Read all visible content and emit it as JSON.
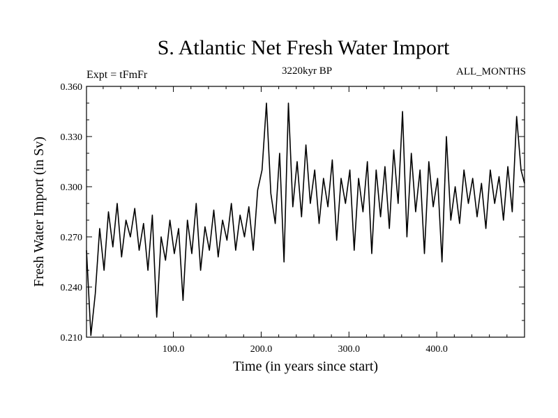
{
  "chart_data": {
    "type": "line",
    "title": "S. Atlantic Net Fresh Water Import",
    "subtitle": "3220kyr BP",
    "experiment_label": "Expt = tFmFr",
    "months_label": "ALL_MONTHS",
    "xlabel": "Time (in years since start)",
    "ylabel": "Fresh Water Import (in Sv)",
    "xlim": [
      1,
      500
    ],
    "ylim": [
      0.21,
      0.36
    ],
    "x_ticks": [
      100,
      200,
      300,
      400
    ],
    "x_tick_labels": [
      "100.0",
      "200.0",
      "300.0",
      "400.0"
    ],
    "y_ticks": [
      0.21,
      0.24,
      0.27,
      0.3,
      0.33,
      0.36
    ],
    "y_tick_labels": [
      "0.210",
      "0.240",
      "0.270",
      "0.300",
      "0.330",
      "0.360"
    ],
    "grid": false,
    "series": [
      {
        "name": "fresh water import",
        "x": [
          1,
          6,
          11,
          16,
          21,
          26,
          31,
          36,
          41,
          46,
          51,
          56,
          61,
          66,
          71,
          76,
          81,
          86,
          91,
          96,
          101,
          106,
          111,
          116,
          121,
          126,
          131,
          136,
          141,
          146,
          151,
          156,
          161,
          166,
          171,
          176,
          181,
          186,
          191,
          196,
          201,
          206,
          211,
          216,
          221,
          226,
          231,
          236,
          241,
          246,
          251,
          256,
          261,
          266,
          271,
          276,
          281,
          286,
          291,
          296,
          301,
          306,
          311,
          316,
          321,
          326,
          331,
          336,
          341,
          346,
          351,
          356,
          361,
          366,
          371,
          376,
          381,
          386,
          391,
          396,
          401,
          406,
          411,
          416,
          421,
          426,
          431,
          436,
          441,
          446,
          451,
          456,
          461,
          466,
          471,
          476,
          481,
          486,
          491,
          496,
          500
        ],
        "values": [
          0.262,
          0.211,
          0.236,
          0.275,
          0.25,
          0.285,
          0.264,
          0.29,
          0.258,
          0.28,
          0.27,
          0.287,
          0.262,
          0.278,
          0.25,
          0.283,
          0.222,
          0.27,
          0.256,
          0.28,
          0.26,
          0.275,
          0.232,
          0.28,
          0.26,
          0.29,
          0.25,
          0.276,
          0.262,
          0.286,
          0.258,
          0.28,
          0.268,
          0.29,
          0.262,
          0.283,
          0.27,
          0.288,
          0.262,
          0.298,
          0.31,
          0.35,
          0.296,
          0.278,
          0.32,
          0.255,
          0.35,
          0.288,
          0.315,
          0.282,
          0.325,
          0.29,
          0.31,
          0.278,
          0.305,
          0.288,
          0.316,
          0.268,
          0.305,
          0.29,
          0.31,
          0.262,
          0.305,
          0.285,
          0.315,
          0.26,
          0.31,
          0.282,
          0.312,
          0.275,
          0.322,
          0.29,
          0.345,
          0.27,
          0.32,
          0.285,
          0.31,
          0.26,
          0.315,
          0.288,
          0.305,
          0.255,
          0.33,
          0.28,
          0.3,
          0.278,
          0.31,
          0.29,
          0.305,
          0.282,
          0.302,
          0.275,
          0.31,
          0.29,
          0.306,
          0.28,
          0.312,
          0.285,
          0.342,
          0.31,
          0.302
        ]
      }
    ]
  }
}
